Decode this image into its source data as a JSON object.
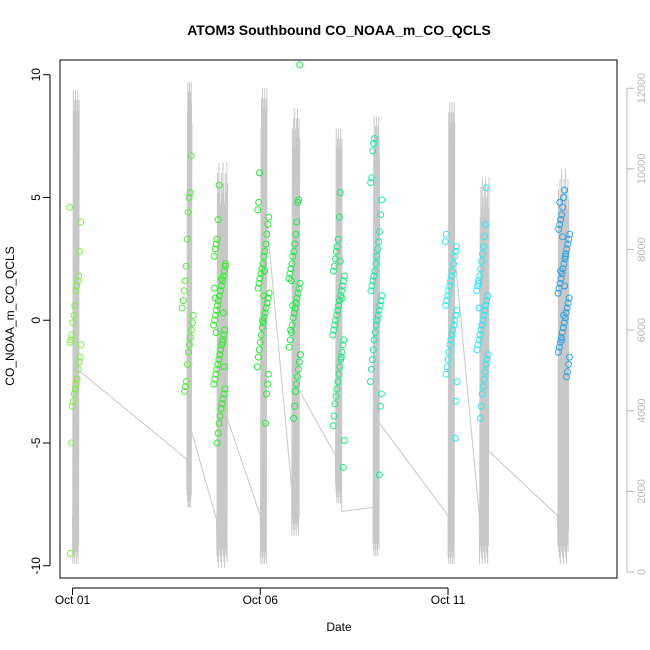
{
  "chart_data": {
    "type": "scatter",
    "title": "ATOM3 Southbound CO_NOAA_m_CO_QCLS",
    "xlabel": "Date",
    "ylabel": "CO_NOAA_m_CO_QCLS",
    "y_ticks": [
      -10,
      -5,
      0,
      5,
      10
    ],
    "y_tick_labels": [
      "-10",
      "-5",
      "0",
      "5",
      "10"
    ],
    "x_ticks": [
      "2017-10-01",
      "2017-10-06",
      "2017-10-11"
    ],
    "x_tick_labels": [
      "Oct 01",
      "Oct 06",
      "Oct 11"
    ],
    "y2_ticks": [
      0,
      2000,
      4000,
      6000,
      8000,
      10000,
      12000
    ],
    "y2_tick_labels": [
      "0",
      "2000",
      "4000",
      "6000",
      "8000",
      "10000",
      "12000"
    ],
    "xlim": [
      "2017-09-30T16:00",
      "2017-10-15T12:00"
    ],
    "ylim": [
      -10.5,
      10.6
    ],
    "y2lim": [
      -150,
      12700
    ],
    "grid": false,
    "point_style": "open circles, colored by flight (green to blue)",
    "secondary_series": "altitude trace (gray line, right axis)",
    "flights": [
      {
        "date": "2017-10-01T02:00",
        "color": "#80ee40",
        "y": [
          4.6,
          4.0,
          2.8,
          1.8,
          1.6,
          1.4,
          1.2,
          0.6,
          0.2,
          -0.1,
          -0.6,
          -0.8,
          -0.9,
          -1.0,
          -1.5,
          -1.7,
          -2.0,
          -2.4,
          -2.6,
          -2.8,
          -3.0,
          -3.3,
          -3.5,
          -5.0,
          -9.5
        ]
      },
      {
        "date": "2017-10-04T02:00",
        "color": "#55ee35",
        "y": [
          6.7,
          5.2,
          5.0,
          4.4,
          3.3,
          2.2,
          1.6,
          1.2,
          0.8,
          0.5,
          0.2,
          -0.1,
          -0.4,
          -0.7,
          -1.0,
          -1.3,
          -1.8,
          -2.5,
          -2.7,
          -2.9
        ]
      },
      {
        "date": "2017-10-04T22:00",
        "color": "#30ee28",
        "y": [
          5.5,
          4.1,
          3.3,
          3.1,
          2.9,
          2.6,
          2.3,
          2.0,
          1.8,
          1.6,
          1.4,
          1.2,
          1.0,
          0.8,
          0.6,
          0.4,
          0.2,
          0.0,
          -0.2,
          -0.4,
          -0.6,
          -0.8,
          -1.0,
          -1.2,
          -1.4,
          -1.6,
          -1.8,
          -2.0,
          -2.2,
          -2.4,
          -2.6,
          -2.8,
          -3.0,
          -3.2,
          -3.4,
          -3.6,
          -3.9,
          -4.2,
          -4.6,
          -5.0,
          -0.5,
          0.9,
          1.3,
          2.2,
          -1.9,
          0.3,
          -0.9,
          1.7
        ]
      },
      {
        "date": "2017-10-06T02:00",
        "color": "#20ee30",
        "y": [
          6.0,
          4.8,
          4.5,
          4.2,
          3.9,
          3.5,
          3.1,
          2.8,
          2.6,
          2.3,
          2.1,
          1.9,
          1.7,
          1.5,
          1.3,
          1.1,
          0.9,
          0.7,
          0.5,
          0.3,
          0.1,
          -0.1,
          -0.3,
          -0.6,
          -0.9,
          -1.2,
          -1.5,
          -1.9,
          -2.2,
          -2.6,
          -3.0,
          -4.2,
          2.0,
          1.0,
          0.0
        ]
      },
      {
        "date": "2017-10-06T22:00",
        "color": "#18ee45",
        "y": [
          10.4,
          4.9,
          4.8,
          4.0,
          3.5,
          3.1,
          2.8,
          2.6,
          2.3,
          2.1,
          1.9,
          1.7,
          1.5,
          1.3,
          1.1,
          0.9,
          0.7,
          0.5,
          0.3,
          0.1,
          -0.2,
          -0.5,
          -0.8,
          -1.1,
          -1.4,
          -1.7,
          -2.0,
          -2.3,
          -2.6,
          -2.9,
          -3.5,
          -4.0,
          0.6,
          1.6,
          -0.4
        ]
      },
      {
        "date": "2017-10-08T02:00",
        "color": "#18ee78",
        "y": [
          5.2,
          4.2,
          3.3,
          3.0,
          2.8,
          2.5,
          2.2,
          2.0,
          1.8,
          1.6,
          1.4,
          1.2,
          1.0,
          0.8,
          0.6,
          0.4,
          0.2,
          0.0,
          -0.2,
          -0.4,
          -0.6,
          -0.8,
          -1.0,
          -1.3,
          -1.6,
          -1.9,
          -2.2,
          -2.5,
          -2.8,
          -3.1,
          -3.4,
          -3.9,
          -4.3,
          -4.9,
          -6.0,
          0.9,
          -1.5,
          2.4
        ]
      },
      {
        "date": "2017-10-09T02:00",
        "color": "#18ee9e",
        "y": [
          7.4,
          7.2,
          6.9,
          5.8,
          5.6,
          4.9,
          4.3,
          3.6,
          3.2,
          2.9,
          2.6,
          2.3,
          2.0,
          1.8,
          1.6,
          1.4,
          1.2,
          1.0,
          0.8,
          0.6,
          0.4,
          0.2,
          0.0,
          -0.2,
          -0.5,
          -0.8,
          -1.2,
          -1.6,
          -2.0,
          -2.5,
          -3.0,
          -3.5,
          -6.3
        ]
      },
      {
        "date": "2017-10-11T02:00",
        "color": "#28eef0",
        "y": [
          3.5,
          3.2,
          3.0,
          2.8,
          2.6,
          2.3,
          2.0,
          1.8,
          1.6,
          1.4,
          1.2,
          1.0,
          0.8,
          0.6,
          0.4,
          0.2,
          0.0,
          -0.2,
          -0.4,
          -0.6,
          -0.8,
          -1.0,
          -1.3,
          -1.6,
          -1.9,
          -2.2,
          -2.5,
          -3.3,
          -4.8
        ]
      },
      {
        "date": "2017-10-11T22:00",
        "color": "#28e8f5",
        "y": [
          5.4,
          3.9,
          3.4,
          3.0,
          2.7,
          2.4,
          2.1,
          1.8,
          1.6,
          1.4,
          1.2,
          1.0,
          0.8,
          0.6,
          0.4,
          0.2,
          0.0,
          -0.2,
          -0.4,
          -0.6,
          -0.8,
          -1.0,
          -1.2,
          -1.4,
          -1.6,
          -1.8,
          -2.1,
          -2.4,
          -2.7,
          -3.0,
          -3.5,
          -4.0,
          0.5,
          1.5
        ]
      },
      {
        "date": "2017-10-14T02:00",
        "color": "#2aa2e8",
        "y": [
          5.3,
          5.0,
          4.6,
          4.3,
          4.1,
          3.9,
          3.7,
          3.5,
          3.3,
          3.1,
          2.9,
          2.7,
          2.5,
          2.3,
          2.1,
          1.9,
          1.7,
          1.5,
          1.3,
          1.1,
          0.9,
          0.7,
          0.5,
          0.3,
          0.1,
          -0.1,
          -0.3,
          -0.5,
          -0.7,
          -0.9,
          -1.1,
          -1.3,
          -1.5,
          -1.8,
          -2.1,
          -2.3,
          2.6,
          1.4,
          0.2,
          3.4,
          -0.8,
          2.0,
          4.8
        ]
      }
    ],
    "altitude_track": {
      "color": "#c8c8c8",
      "segments": [
        {
          "t_start": "2017-10-01T00:00",
          "t_end": "2017-10-01T04:00",
          "low": 200,
          "high": 11950,
          "end_alt": 5000
        },
        {
          "t_start": "2017-10-04T01:00",
          "t_end": "2017-10-04T04:00",
          "low": 1600,
          "high": 12150,
          "end_alt": 3500
        },
        {
          "t_start": "2017-10-04T20:00",
          "t_end": "2017-10-05T03:00",
          "low": 100,
          "high": 10150,
          "end_alt": 3800
        },
        {
          "t_start": "2017-10-06T00:00",
          "t_end": "2017-10-06T04:00",
          "low": 200,
          "high": 12000,
          "end_alt": 8800
        },
        {
          "t_start": "2017-10-06T20:00",
          "t_end": "2017-10-07T01:00",
          "low": 900,
          "high": 11500,
          "end_alt": 4500
        },
        {
          "t_start": "2017-10-08T00:00",
          "t_end": "2017-10-08T04:00",
          "low": 1700,
          "high": 11000,
          "end_alt": 1500
        },
        {
          "t_start": "2017-10-09T00:00",
          "t_end": "2017-10-09T04:00",
          "low": 400,
          "high": 11300,
          "end_alt": 3700
        },
        {
          "t_start": "2017-10-11T00:00",
          "t_end": "2017-10-11T04:00",
          "low": 200,
          "high": 11650,
          "end_alt": 8000
        },
        {
          "t_start": "2017-10-11T20:00",
          "t_end": "2017-10-12T02:00",
          "low": 200,
          "high": 9800,
          "end_alt": 3000
        },
        {
          "t_start": "2017-10-13T22:00",
          "t_end": "2017-10-14T05:00",
          "low": 200,
          "high": 10000,
          "end_alt": 1000
        }
      ]
    }
  }
}
